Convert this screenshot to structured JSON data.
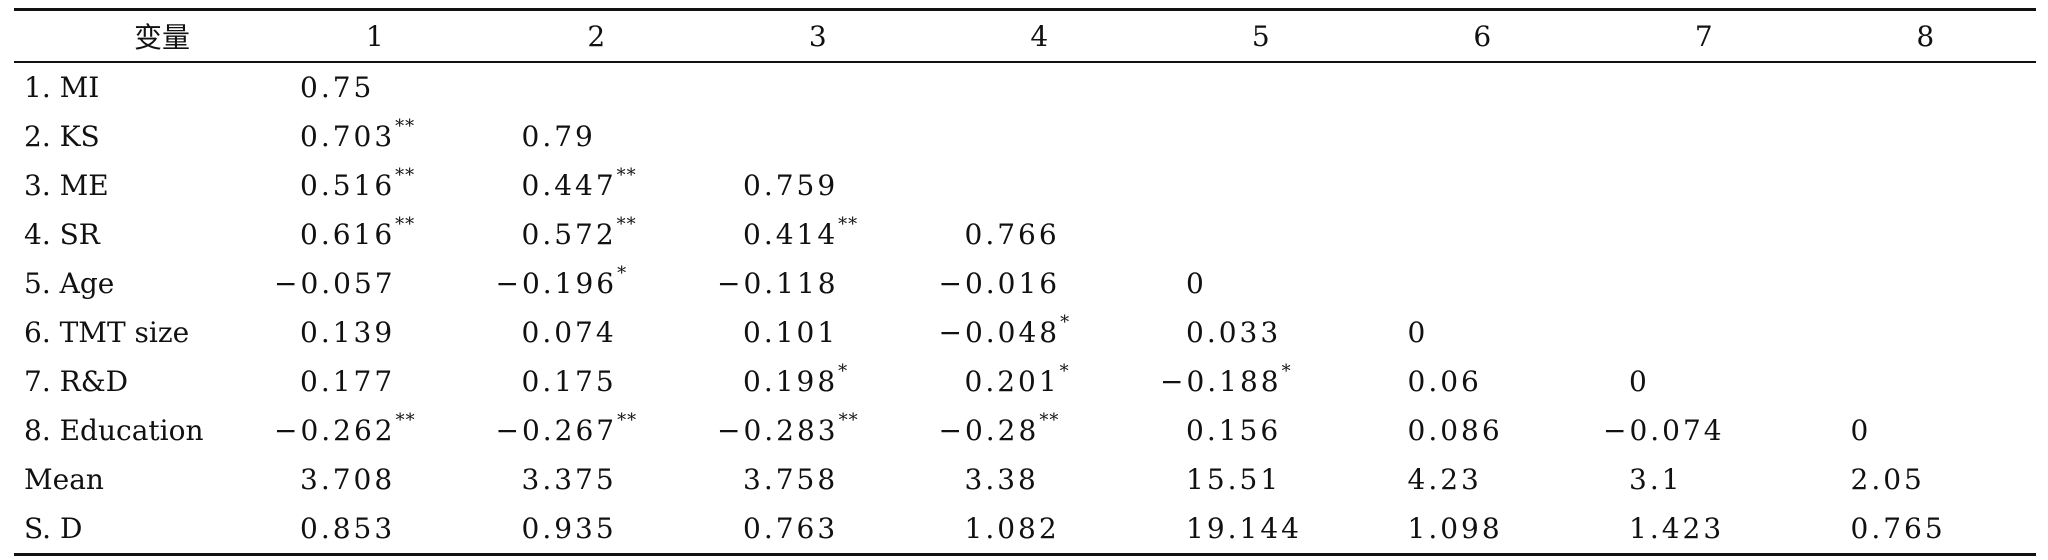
{
  "table": {
    "headers": [
      "变量",
      "1",
      "2",
      "3",
      "4",
      "5",
      "6",
      "7",
      "8"
    ],
    "rows": [
      {
        "label": "1. MI",
        "cells": [
          [
            "0.75",
            ""
          ],
          [
            "",
            ""
          ],
          [
            "",
            ""
          ],
          [
            "",
            ""
          ],
          [
            "",
            ""
          ],
          [
            "",
            ""
          ],
          [
            "",
            ""
          ],
          [
            "",
            ""
          ]
        ]
      },
      {
        "label": "2. KS",
        "cells": [
          [
            "0.703",
            "**"
          ],
          [
            "0.79",
            ""
          ],
          [
            "",
            ""
          ],
          [
            "",
            ""
          ],
          [
            "",
            ""
          ],
          [
            "",
            ""
          ],
          [
            "",
            ""
          ],
          [
            "",
            ""
          ]
        ]
      },
      {
        "label": "3. ME",
        "cells": [
          [
            "0.516",
            "**"
          ],
          [
            "0.447",
            "**"
          ],
          [
            "0.759",
            ""
          ],
          [
            "",
            ""
          ],
          [
            "",
            ""
          ],
          [
            "",
            ""
          ],
          [
            "",
            ""
          ],
          [
            "",
            ""
          ]
        ]
      },
      {
        "label": "4. SR",
        "cells": [
          [
            "0.616",
            "**"
          ],
          [
            "0.572",
            "**"
          ],
          [
            "0.414",
            "**"
          ],
          [
            "0.766",
            ""
          ],
          [
            "",
            ""
          ],
          [
            "",
            ""
          ],
          [
            "",
            ""
          ],
          [
            "",
            ""
          ]
        ]
      },
      {
        "label": "5. Age",
        "cells": [
          [
            "−0.057",
            ""
          ],
          [
            "−0.196",
            "*"
          ],
          [
            "−0.118",
            ""
          ],
          [
            "−0.016",
            ""
          ],
          [
            "0",
            ""
          ],
          [
            "",
            ""
          ],
          [
            "",
            ""
          ],
          [
            "",
            ""
          ]
        ]
      },
      {
        "label": "6. TMT size",
        "cells": [
          [
            "0.139",
            ""
          ],
          [
            "0.074",
            ""
          ],
          [
            "0.101",
            ""
          ],
          [
            "−0.048",
            "*"
          ],
          [
            "0.033",
            ""
          ],
          [
            "0",
            ""
          ],
          [
            "",
            ""
          ],
          [
            "",
            ""
          ]
        ]
      },
      {
        "label": "7. R&D",
        "cells": [
          [
            "0.177",
            ""
          ],
          [
            "0.175",
            ""
          ],
          [
            "0.198",
            "*"
          ],
          [
            "0.201",
            "*"
          ],
          [
            "−0.188",
            "*"
          ],
          [
            "0.06",
            ""
          ],
          [
            "0",
            ""
          ],
          [
            "",
            ""
          ]
        ]
      },
      {
        "label": "8. Education",
        "cells": [
          [
            "−0.262",
            "**"
          ],
          [
            "−0.267",
            "**"
          ],
          [
            "−0.283",
            "**"
          ],
          [
            "−0.28",
            "**"
          ],
          [
            "0.156",
            ""
          ],
          [
            "0.086",
            ""
          ],
          [
            "−0.074",
            ""
          ],
          [
            "0",
            ""
          ]
        ]
      },
      {
        "label": "Mean",
        "cells": [
          [
            "3.708",
            ""
          ],
          [
            "3.375",
            ""
          ],
          [
            "3.758",
            ""
          ],
          [
            "3.38",
            ""
          ],
          [
            "15.51",
            ""
          ],
          [
            "4.23",
            ""
          ],
          [
            "3.1",
            ""
          ],
          [
            "2.05",
            ""
          ]
        ]
      },
      {
        "label": "S. D",
        "cells": [
          [
            "0.853",
            ""
          ],
          [
            "0.935",
            ""
          ],
          [
            "0.763",
            ""
          ],
          [
            "1.082",
            ""
          ],
          [
            "19.144",
            ""
          ],
          [
            "1.098",
            ""
          ],
          [
            "1.423",
            ""
          ],
          [
            "0.765",
            ""
          ]
        ]
      }
    ]
  }
}
